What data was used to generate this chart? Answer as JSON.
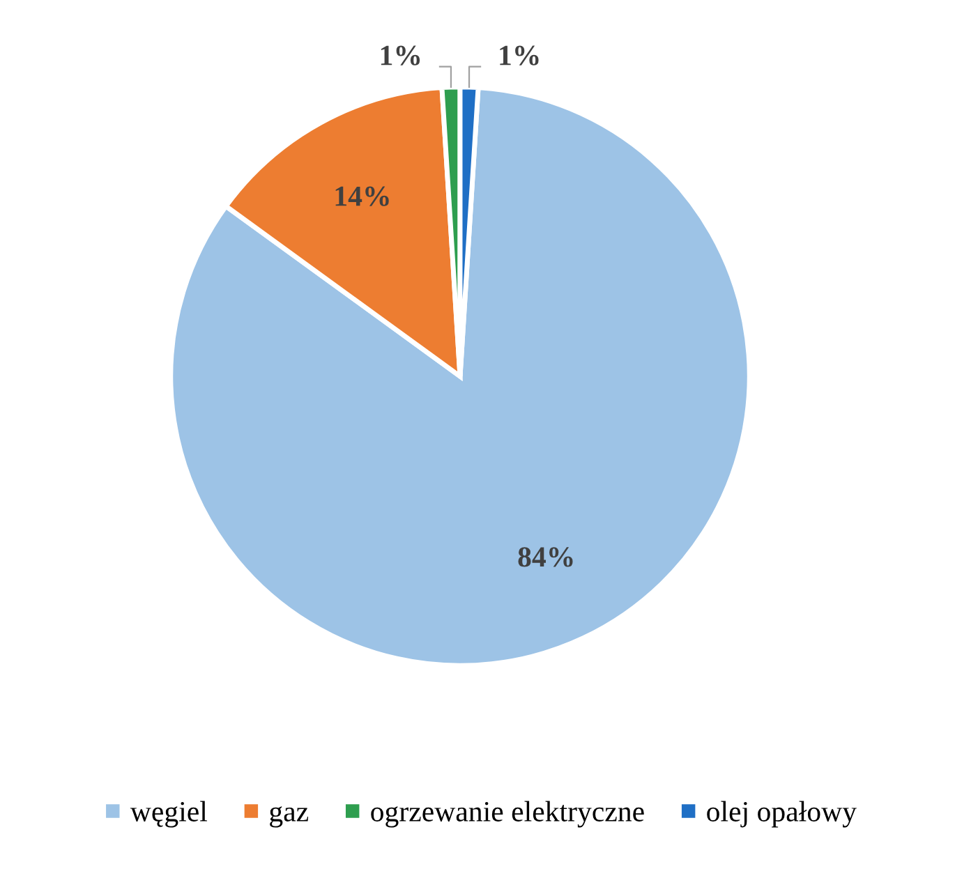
{
  "chart_data": {
    "type": "pie",
    "categories": [
      "węgiel",
      "gaz",
      "ogrzewanie elektryczne",
      "olej opałowy"
    ],
    "values": [
      84,
      14,
      1,
      1
    ],
    "colors": [
      "#9dc3e6",
      "#ed7d31",
      "#2e9e4f",
      "#1f6fc5"
    ],
    "value_labels": [
      "84%",
      "14%",
      "1%",
      "1%"
    ],
    "legend": "bottom"
  }
}
